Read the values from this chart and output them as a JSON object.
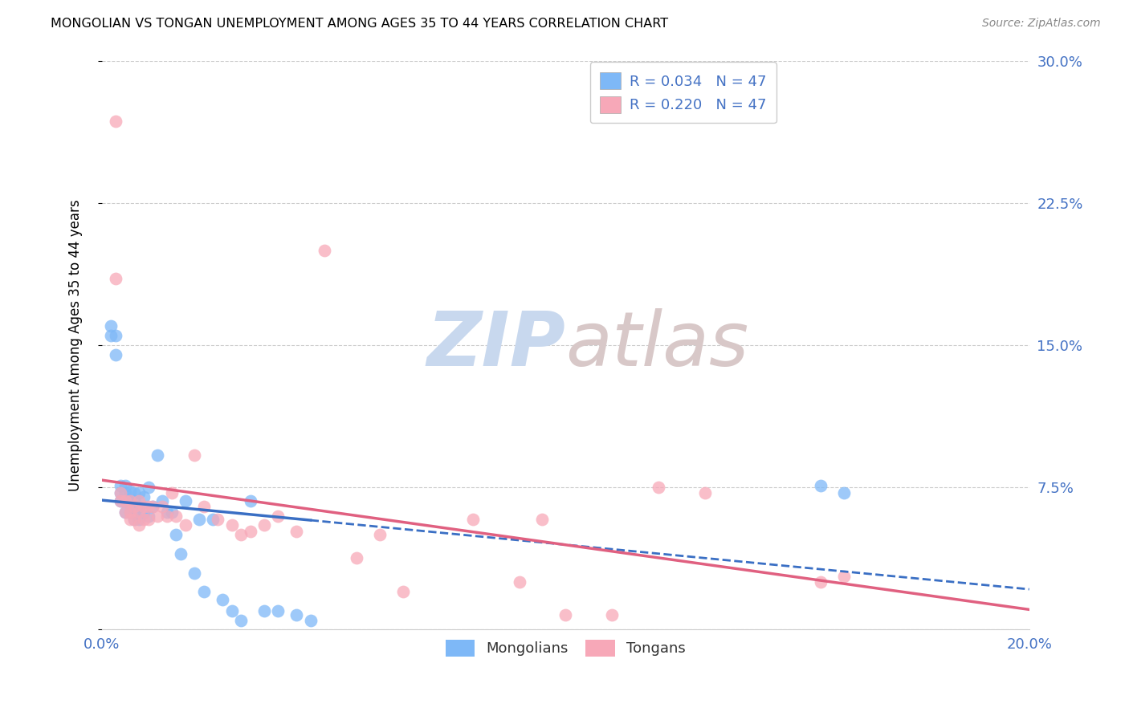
{
  "title": "MONGOLIAN VS TONGAN UNEMPLOYMENT AMONG AGES 35 TO 44 YEARS CORRELATION CHART",
  "source": "Source: ZipAtlas.com",
  "ylabel": "Unemployment Among Ages 35 to 44 years",
  "xlim": [
    0.0,
    0.2
  ],
  "ylim": [
    0.0,
    0.3
  ],
  "xticks": [
    0.0,
    0.04,
    0.08,
    0.12,
    0.16,
    0.2
  ],
  "yticks": [
    0.0,
    0.075,
    0.15,
    0.225,
    0.3
  ],
  "ytick_labels": [
    "",
    "7.5%",
    "15.0%",
    "22.5%",
    "30.0%"
  ],
  "xtick_labels": [
    "0.0%",
    "",
    "",
    "",
    "",
    "20.0%"
  ],
  "mongolian_R": 0.034,
  "mongolian_N": 47,
  "tongan_R": 0.22,
  "tongan_N": 47,
  "mongolian_color": "#7EB8F7",
  "tongan_color": "#F7A8B8",
  "mongolian_line_color": "#3A6FC4",
  "tongan_line_color": "#E06080",
  "background_color": "#FFFFFF",
  "grid_color": "#CCCCCC",
  "watermark_zip": "ZIP",
  "watermark_atlas": "atlas",
  "watermark_color": "#DEDEDE",
  "mongolian_x": [
    0.002,
    0.002,
    0.003,
    0.003,
    0.004,
    0.004,
    0.004,
    0.005,
    0.005,
    0.005,
    0.005,
    0.006,
    0.006,
    0.006,
    0.007,
    0.007,
    0.007,
    0.007,
    0.008,
    0.008,
    0.008,
    0.009,
    0.009,
    0.01,
    0.01,
    0.011,
    0.012,
    0.013,
    0.014,
    0.015,
    0.016,
    0.017,
    0.018,
    0.02,
    0.021,
    0.022,
    0.024,
    0.026,
    0.028,
    0.03,
    0.032,
    0.035,
    0.038,
    0.042,
    0.045,
    0.155,
    0.16
  ],
  "mongolian_y": [
    0.16,
    0.155,
    0.155,
    0.145,
    0.076,
    0.072,
    0.068,
    0.076,
    0.072,
    0.068,
    0.062,
    0.073,
    0.068,
    0.062,
    0.072,
    0.068,
    0.062,
    0.058,
    0.072,
    0.065,
    0.058,
    0.07,
    0.062,
    0.075,
    0.06,
    0.065,
    0.092,
    0.068,
    0.062,
    0.062,
    0.05,
    0.04,
    0.068,
    0.03,
    0.058,
    0.02,
    0.058,
    0.016,
    0.01,
    0.005,
    0.068,
    0.01,
    0.01,
    0.008,
    0.005,
    0.076,
    0.072
  ],
  "tongan_x": [
    0.003,
    0.003,
    0.004,
    0.004,
    0.005,
    0.005,
    0.006,
    0.006,
    0.006,
    0.007,
    0.007,
    0.008,
    0.008,
    0.008,
    0.009,
    0.009,
    0.01,
    0.01,
    0.011,
    0.012,
    0.013,
    0.014,
    0.015,
    0.016,
    0.018,
    0.02,
    0.022,
    0.025,
    0.028,
    0.03,
    0.032,
    0.035,
    0.038,
    0.042,
    0.048,
    0.055,
    0.06,
    0.065,
    0.08,
    0.09,
    0.095,
    0.1,
    0.11,
    0.12,
    0.13,
    0.155,
    0.16
  ],
  "tongan_y": [
    0.268,
    0.185,
    0.072,
    0.068,
    0.068,
    0.062,
    0.068,
    0.062,
    0.058,
    0.065,
    0.058,
    0.068,
    0.062,
    0.055,
    0.065,
    0.058,
    0.065,
    0.058,
    0.065,
    0.06,
    0.065,
    0.06,
    0.072,
    0.06,
    0.055,
    0.092,
    0.065,
    0.058,
    0.055,
    0.05,
    0.052,
    0.055,
    0.06,
    0.052,
    0.2,
    0.038,
    0.05,
    0.02,
    0.058,
    0.025,
    0.058,
    0.008,
    0.008,
    0.075,
    0.072,
    0.025,
    0.028
  ]
}
